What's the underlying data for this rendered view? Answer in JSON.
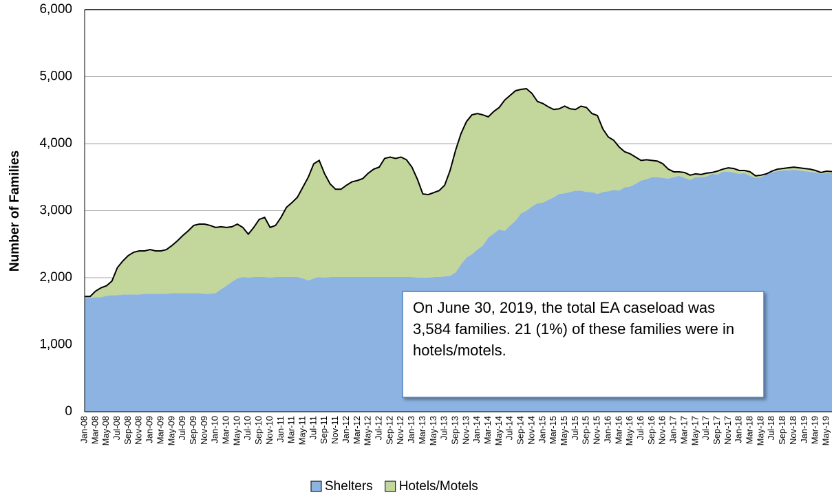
{
  "chart_data": {
    "type": "stacked-area",
    "y_label": "Number of Families",
    "annotation": "On June 30, 2019, the total EA caseload was 3,584 families. 21 (1%) of these families were in hotels/motels.",
    "categories": [
      "Jan-08",
      null,
      "Mar-08",
      null,
      "May-08",
      null,
      "Jul-08",
      null,
      "Sep-08",
      null,
      "Nov-08",
      null,
      "Jan-09",
      null,
      "Mar-09",
      null,
      "May-09",
      null,
      "Jul-09",
      null,
      "Sep-09",
      null,
      "Nov-09",
      null,
      "Jan-10",
      null,
      "Mar-10",
      null,
      "May-10",
      null,
      "Jul-10",
      null,
      "Sep-10",
      null,
      "Nov-10",
      null,
      "Jan-11",
      null,
      "Mar-11",
      null,
      "May-11",
      null,
      "Jul-11",
      null,
      "Sep-11",
      null,
      "Nov-11",
      null,
      "Jan-12",
      null,
      "Mar-12",
      null,
      "May-12",
      null,
      "Jul-12",
      null,
      "Sep-12",
      null,
      "Nov-12",
      null,
      "Jan-13",
      null,
      "Mar-13",
      null,
      "May-13",
      null,
      "Jul-13",
      null,
      "Sep-13",
      null,
      "Nov-13",
      null,
      "Jan-14",
      null,
      "Mar-14",
      null,
      "May-14",
      null,
      "Jul-14",
      null,
      "Sep-14",
      null,
      "Nov-14",
      null,
      "Jan-15",
      null,
      "Mar-15",
      null,
      "May-15",
      null,
      "Jul-15",
      null,
      "Sep-15",
      null,
      "Nov-15",
      null,
      "Jan-16",
      null,
      "Mar-16",
      null,
      "May-16",
      null,
      "Jul-16",
      null,
      "Sep-16",
      null,
      "Nov-16",
      null,
      "Jan-17",
      null,
      "Mar-17",
      null,
      "May-17",
      null,
      "Jul-17",
      null,
      "Sep-17",
      null,
      "Nov-17",
      null,
      "Jan-18",
      null,
      "Mar-18",
      null,
      "May-18",
      null,
      "Jul-18",
      null,
      "Sep-18",
      null,
      "Nov-18",
      null,
      "Jan-19",
      null,
      "Mar-19",
      null,
      "May-19",
      null
    ],
    "series": [
      {
        "name": "Shelters",
        "color": "#8db3e2",
        "values": [
          1700,
          1700,
          1710,
          1710,
          1730,
          1740,
          1740,
          1750,
          1750,
          1750,
          1750,
          1760,
          1760,
          1760,
          1760,
          1760,
          1770,
          1770,
          1770,
          1770,
          1770,
          1770,
          1760,
          1760,
          1770,
          1830,
          1880,
          1940,
          1990,
          2010,
          2000,
          2010,
          2010,
          2010,
          2000,
          2010,
          2010,
          2010,
          2010,
          2010,
          1990,
          1960,
          1990,
          2010,
          2000,
          2010,
          2010,
          2010,
          2010,
          2010,
          2010,
          2010,
          2010,
          2010,
          2010,
          2010,
          2010,
          2010,
          2010,
          2010,
          2010,
          2000,
          2000,
          2000,
          2010,
          2010,
          2020,
          2030,
          2080,
          2200,
          2300,
          2350,
          2420,
          2480,
          2600,
          2660,
          2720,
          2700,
          2780,
          2850,
          2960,
          3000,
          3060,
          3110,
          3120,
          3160,
          3200,
          3250,
          3260,
          3280,
          3300,
          3300,
          3280,
          3280,
          3250,
          3280,
          3290,
          3310,
          3300,
          3350,
          3360,
          3400,
          3450,
          3470,
          3500,
          3500,
          3490,
          3480,
          3500,
          3520,
          3490,
          3460,
          3500,
          3500,
          3510,
          3550,
          3540,
          3580,
          3580,
          3570,
          3550,
          3560,
          3520,
          3490,
          3500,
          3540,
          3570,
          3590,
          3600,
          3600,
          3610,
          3600,
          3590,
          3580,
          3570,
          3550,
          3560,
          3563
        ]
      },
      {
        "name": "Hotels/Motels",
        "color": "#c3d69b",
        "values": [
          20,
          20,
          90,
          140,
          150,
          210,
          410,
          500,
          580,
          630,
          650,
          640,
          660,
          640,
          640,
          660,
          710,
          780,
          860,
          930,
          1010,
          1030,
          1040,
          1020,
          980,
          930,
          870,
          820,
          810,
          740,
          650,
          740,
          860,
          890,
          750,
          770,
          890,
          1040,
          1110,
          1190,
          1360,
          1540,
          1710,
          1740,
          1550,
          1390,
          1310,
          1310,
          1370,
          1420,
          1440,
          1470,
          1550,
          1610,
          1640,
          1770,
          1790,
          1770,
          1790,
          1750,
          1640,
          1470,
          1250,
          1240,
          1260,
          1290,
          1360,
          1570,
          1820,
          1950,
          2030,
          2080,
          2030,
          1950,
          1800,
          1820,
          1820,
          1950,
          1940,
          1940,
          1850,
          1820,
          1690,
          1520,
          1480,
          1390,
          1310,
          1270,
          1300,
          1240,
          1210,
          1260,
          1260,
          1170,
          1170,
          940,
          810,
          740,
          650,
          530,
          490,
          400,
          300,
          290,
          250,
          240,
          210,
          140,
          80,
          60,
          80,
          70,
          50,
          40,
          50,
          20,
          50,
          40,
          60,
          60,
          50,
          40,
          60,
          30,
          30,
          10,
          20,
          30,
          30,
          40,
          40,
          40,
          40,
          40,
          30,
          20,
          30,
          21
        ]
      }
    ],
    "ylim": [
      0,
      6000
    ],
    "yticks": [
      0,
      {
        "value": 1000,
        "label": "1,000"
      },
      {
        "value": 2000,
        "label": "2,000"
      },
      {
        "value": 3000,
        "label": "3,000"
      },
      {
        "value": 4000,
        "label": "4,000"
      },
      {
        "value": 5000,
        "label": "5,000"
      },
      {
        "value": 6000,
        "label": "6,000"
      }
    ],
    "grid": true
  }
}
